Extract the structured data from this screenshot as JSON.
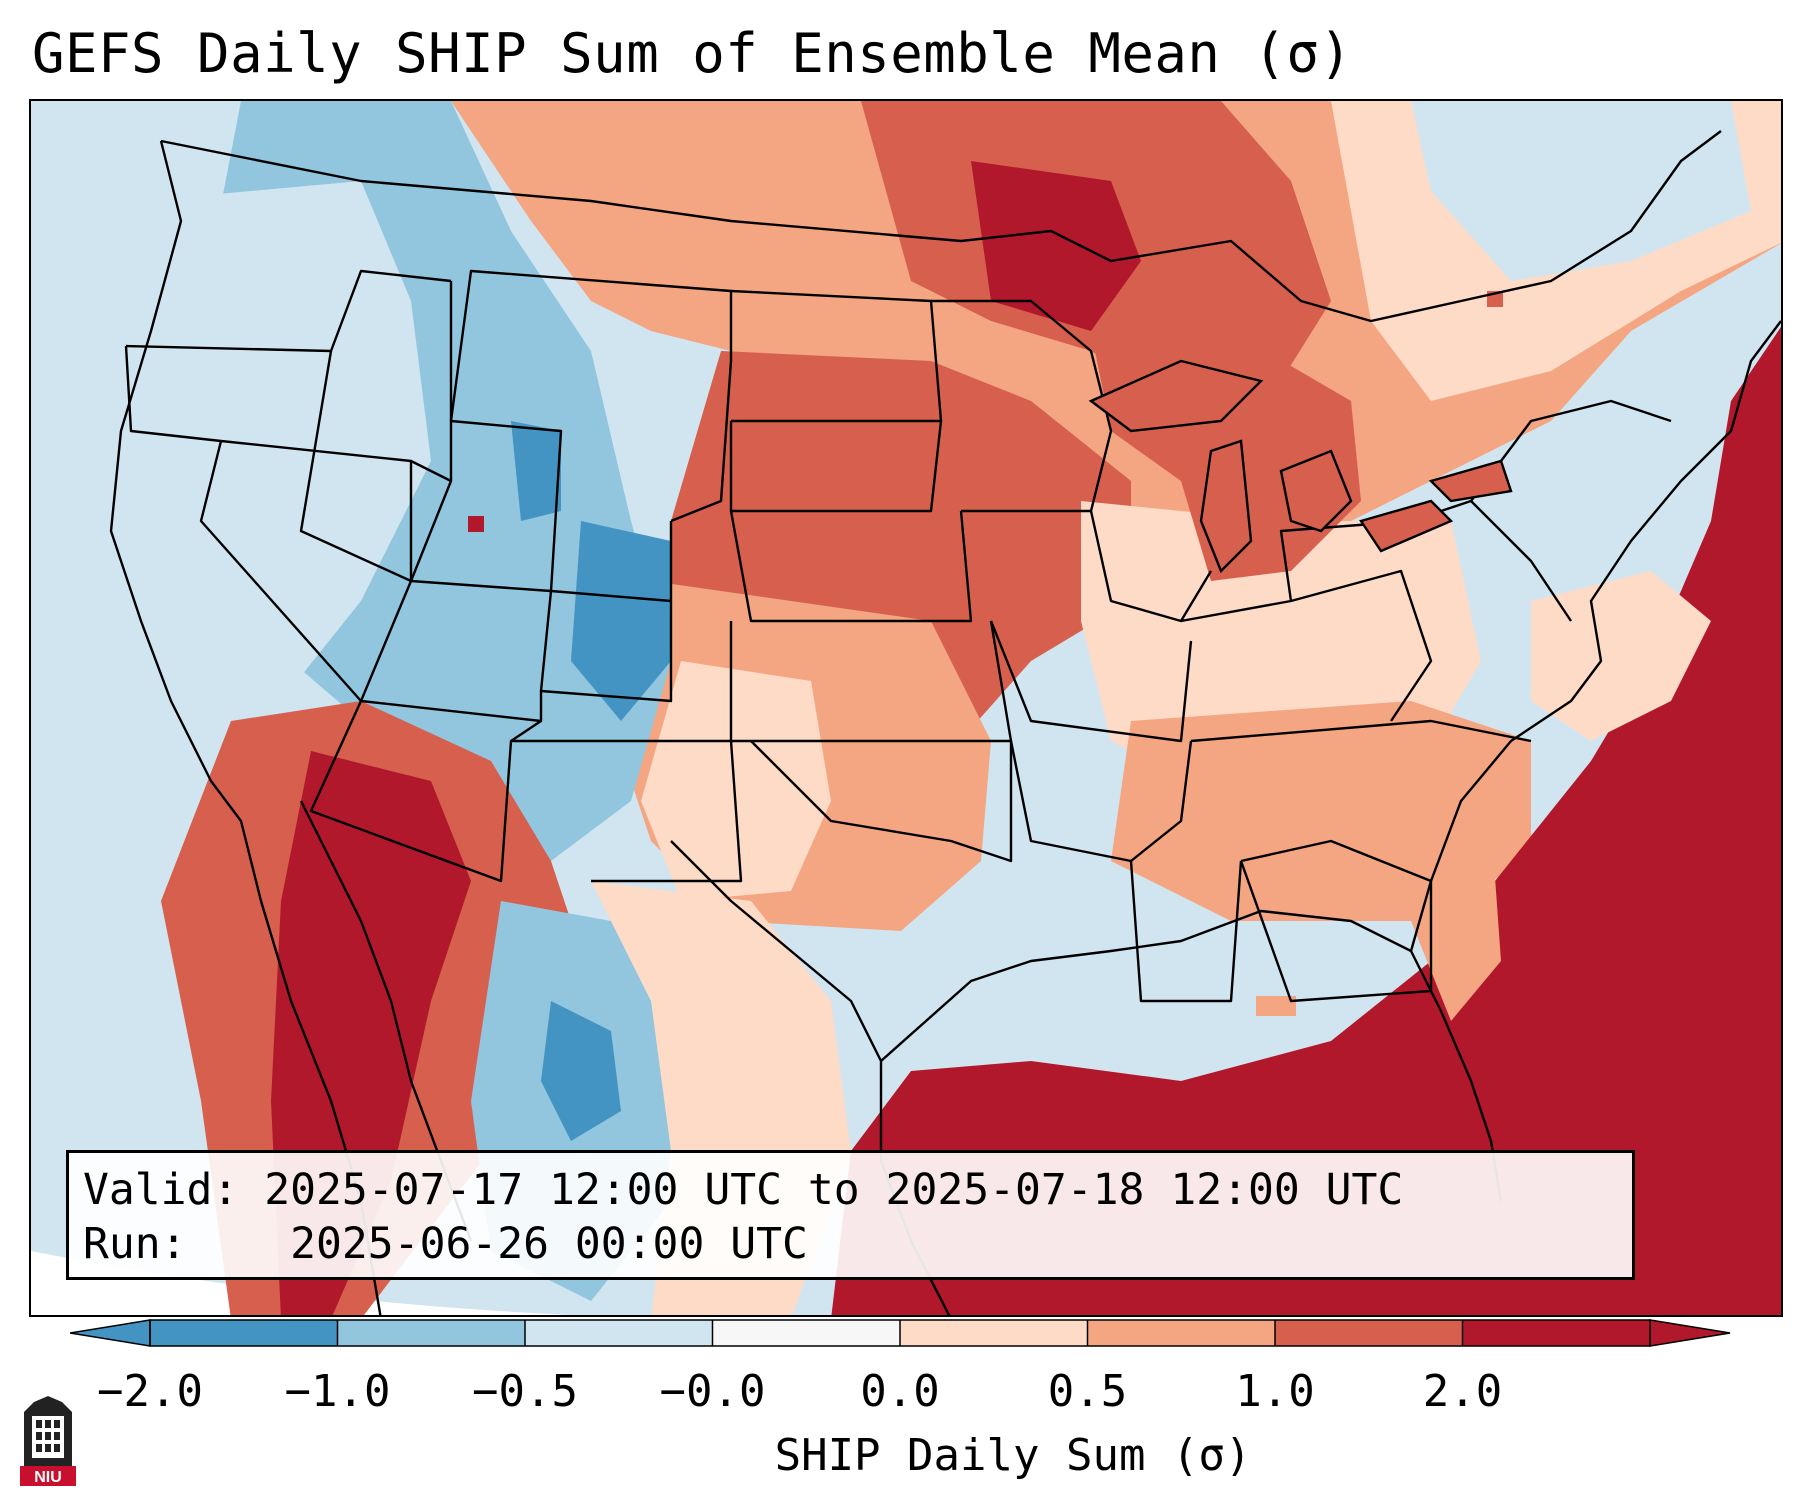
{
  "title": "GEFS Daily SHIP Sum of Ensemble Mean (σ)",
  "info": {
    "valid_label": "Valid:",
    "valid_value": "2025-07-17 12:00 UTC to 2025-07-18 12:00 UTC",
    "run_label": "Run:",
    "run_value": "2025-06-26 00:00 UTC"
  },
  "colorbar": {
    "label": "SHIP Daily Sum (σ)",
    "ticks": [
      "−2.0",
      "−1.0",
      "−0.5",
      "−0.0",
      "0.0",
      "0.5",
      "1.0",
      "2.0"
    ],
    "colors": [
      "#4393c3",
      "#92c5de",
      "#d1e5f0",
      "#f7f7f7",
      "#fddbc7",
      "#f4a582",
      "#d6604d",
      "#b2182b"
    ],
    "extend": "both"
  },
  "logo": {
    "text": "NIU",
    "color": "#c8102e"
  },
  "map": {
    "projection": "Lambert conformal, CONUS",
    "ocean_color": "#d1e5f0",
    "outline_color": "#000000"
  }
}
